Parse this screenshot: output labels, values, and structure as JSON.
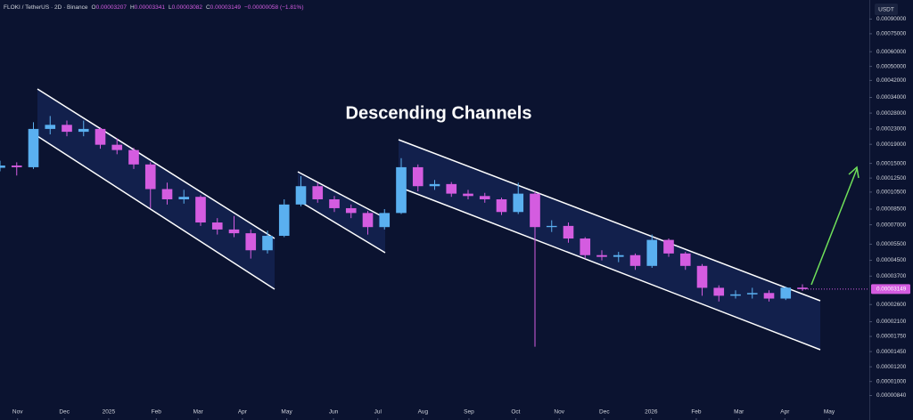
{
  "chart_data": {
    "type": "candlestick",
    "title": "Descending Channels",
    "header": {
      "symbol": "FLOKI / TetherUS · 2D · Binance",
      "items": [
        {
          "key": "O",
          "value": "0.00003207"
        },
        {
          "key": "H",
          "value": "0.00003341"
        },
        {
          "key": "L",
          "value": "0.00003082"
        },
        {
          "key": "C",
          "value": "0.00003149"
        }
      ],
      "change": "−0.00000058 (−1.81%)"
    },
    "currency": "USDT",
    "price_label": "0.00003149",
    "up_color": "#5ab0f0",
    "down_color": "#d45ce0",
    "log_scale": true,
    "grid": false,
    "x": [
      0,
      2,
      4,
      6,
      8,
      10,
      12,
      14,
      16,
      18,
      20,
      22,
      24,
      26,
      28,
      30,
      32,
      34,
      36,
      38,
      40,
      42,
      44,
      46,
      48,
      50,
      52,
      54,
      56,
      58,
      60,
      62,
      64,
      66,
      68,
      70,
      72,
      74,
      76,
      78,
      80,
      82,
      84,
      86,
      88,
      90,
      92,
      94,
      96
    ],
    "open": [
      0.000142,
      0.000146,
      0.000143,
      0.00023,
      0.000242,
      0.000222,
      0.00023,
      0.000189,
      0.000177,
      0.000148,
      0.000109,
      9.6e-05,
      9.9e-05,
      7.2e-05,
      6.6e-05,
      6.3e-05,
      5.1e-05,
      6.1e-05,
      9e-05,
      0.000113,
      9.6e-05,
      8.6e-05,
      8.1e-05,
      6.8e-05,
      8.1e-05,
      0.000143,
      0.000113,
      0.000116,
      0.000103,
      0.0001,
      9.6e-05,
      8.2e-05,
      0.000103,
      6.8e-05,
      6.9e-05,
      5.9e-05,
      4.8e-05,
      4.7e-05,
      4.8e-05,
      4.2e-05,
      5.8e-05,
      4.9e-05,
      4.2e-05,
      3.2e-05,
      2.9e-05,
      2.95e-05,
      3e-05,
      2.8e-05,
      3.207e-05
    ],
    "high": [
      0.000155,
      0.000152,
      0.00025,
      0.00027,
      0.000255,
      0.000255,
      0.000235,
      0.000205,
      0.000182,
      0.000152,
      0.000118,
      0.000108,
      0.000101,
      7.6e-05,
      7.8e-05,
      6.6e-05,
      6.5e-05,
      9.6e-05,
      0.000128,
      0.000118,
      0.0001,
      9e-05,
      8.3e-05,
      8.5e-05,
      0.00016,
      0.000148,
      0.000122,
      0.000119,
      0.000108,
      0.000104,
      9.8e-05,
      0.000118,
      0.000106,
      7.4e-05,
      7.2e-05,
      6e-05,
      5.1e-05,
      5e-05,
      4.9e-05,
      6.2e-05,
      5.9e-05,
      5e-05,
      4.3e-05,
      3.3e-05,
      3.1e-05,
      3.2e-05,
      3.1e-05,
      3.25e-05,
      3.341e-05
    ],
    "low": [
      0.000136,
      0.000129,
      0.00014,
      0.000215,
      0.00021,
      0.00021,
      0.00018,
      0.000168,
      0.00014,
      8.6e-05,
      9e-05,
      9.1e-05,
      6.9e-05,
      6.2e-05,
      6e-05,
      4.6e-05,
      4.9e-05,
      6e-05,
      8.8e-05,
      9.2e-05,
      8.2e-05,
      7.6e-05,
      6.2e-05,
      6.6e-05,
      8e-05,
      0.000106,
      0.000108,
      9.9e-05,
      9.6e-05,
      9.2e-05,
      7.9e-05,
      8e-05,
      1.54e-05,
      6.4e-05,
      5.6e-05,
      4.6e-05,
      4.5e-05,
      4.4e-05,
      4e-05,
      4.1e-05,
      4.7e-05,
      4e-05,
      2.9e-05,
      2.7e-05,
      2.8e-05,
      2.8e-05,
      2.7e-05,
      2.75e-05,
      3.082e-05
    ],
    "close": [
      0.000146,
      0.000143,
      0.00023,
      0.000242,
      0.000222,
      0.00023,
      0.000189,
      0.000177,
      0.000148,
      0.000109,
      9.6e-05,
      9.9e-05,
      7.2e-05,
      6.6e-05,
      6.3e-05,
      5.1e-05,
      6.1e-05,
      9e-05,
      0.000113,
      9.6e-05,
      8.6e-05,
      8.1e-05,
      6.8e-05,
      8.1e-05,
      0.000143,
      0.000113,
      0.000116,
      0.000103,
      0.0001,
      9.6e-05,
      8.2e-05,
      0.000103,
      6.8e-05,
      6.9e-05,
      5.9e-05,
      4.8e-05,
      4.7e-05,
      4.8e-05,
      4.2e-05,
      5.8e-05,
      4.9e-05,
      4.2e-05,
      3.2e-05,
      2.9e-05,
      2.95e-05,
      3e-05,
      2.8e-05,
      3.207e-05,
      3.149e-05
    ],
    "xlim": [
      0,
      104
    ],
    "xticks": [
      {
        "value": 2.1,
        "label": "Nov"
      },
      {
        "value": 7.7,
        "label": "Dec"
      },
      {
        "value": 13,
        "label": "2025"
      },
      {
        "value": 18.7,
        "label": "Feb"
      },
      {
        "value": 23.7,
        "label": "Mar"
      },
      {
        "value": 29,
        "label": "Apr"
      },
      {
        "value": 34.3,
        "label": "May"
      },
      {
        "value": 39.9,
        "label": "Jun"
      },
      {
        "value": 45.2,
        "label": "Jul"
      },
      {
        "value": 50.6,
        "label": "Aug"
      },
      {
        "value": 56.1,
        "label": "Sep"
      },
      {
        "value": 61.7,
        "label": "Oct"
      },
      {
        "value": 66.9,
        "label": "Nov"
      },
      {
        "value": 72.3,
        "label": "Dec"
      },
      {
        "value": 77.9,
        "label": "2026"
      },
      {
        "value": 83.3,
        "label": "Feb"
      },
      {
        "value": 88.4,
        "label": "Mar"
      },
      {
        "value": 93.9,
        "label": "Apr"
      },
      {
        "value": 99.2,
        "label": "May"
      }
    ],
    "ylim": [
      6.2e-06,
      0.00114
    ],
    "yticks": [
      {
        "value": 0.0009,
        "label": "0.00090000"
      },
      {
        "value": 0.00075,
        "label": "0.00075000"
      },
      {
        "value": 0.0006,
        "label": "0.00060000"
      },
      {
        "value": 0.0005,
        "label": "0.00050000"
      },
      {
        "value": 0.00042,
        "label": "0.00042000"
      },
      {
        "value": 0.00034,
        "label": "0.00034000"
      },
      {
        "value": 0.00028,
        "label": "0.00028000"
      },
      {
        "value": 0.00023,
        "label": "0.00023000"
      },
      {
        "value": 0.00019,
        "label": "0.00019000"
      },
      {
        "value": 0.00015,
        "label": "0.00015000"
      },
      {
        "value": 0.000125,
        "label": "0.00012500"
      },
      {
        "value": 0.000105,
        "label": "0.00010500"
      },
      {
        "value": 8.5e-05,
        "label": "0.00008500"
      },
      {
        "value": 7e-05,
        "label": "0.00007000"
      },
      {
        "value": 5.5e-05,
        "label": "0.00005500"
      },
      {
        "value": 4.5e-05,
        "label": "0.00004500"
      },
      {
        "value": 3.7e-05,
        "label": "0.00003700"
      },
      {
        "value": 2.6e-05,
        "label": "0.00002600"
      },
      {
        "value": 2.1e-05,
        "label": "0.00002100"
      },
      {
        "value": 1.75e-05,
        "label": "0.00001750"
      },
      {
        "value": 1.45e-05,
        "label": "0.00001450"
      },
      {
        "value": 1.2e-05,
        "label": "0.00001200"
      },
      {
        "value": 1e-05,
        "label": "0.00001000"
      },
      {
        "value": 8.4e-06,
        "label": "0.00000840"
      }
    ]
  }
}
